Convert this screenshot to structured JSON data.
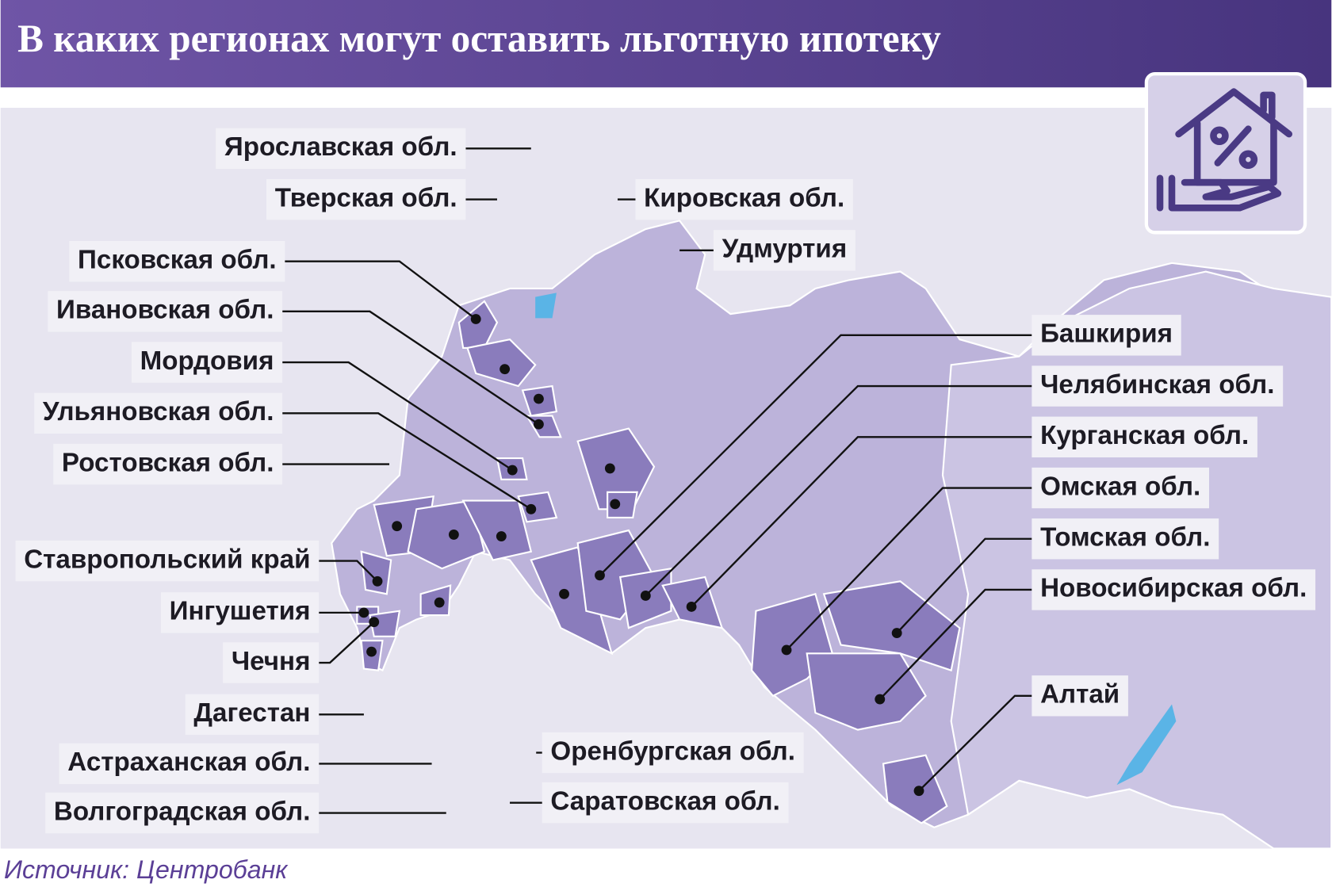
{
  "title": "В каких регионах могут оставить льготную ипотеку",
  "regions": [
    "Ярославская обл.",
    "Тверская обл.",
    "Псковская обл.",
    "Ивановская обл.",
    "Мордовия",
    "Ульяновская обл.",
    "Ростовская обл.",
    "Ставропольский край",
    "Ингушетия",
    "Чечня",
    "Дагестан",
    "Астраханская обл.",
    "Волгоградская обл.",
    "Оренбургская обл.",
    "Саратовская обл.",
    "Кировская обл.",
    "Удмуртия",
    "Башкирия",
    "Челябинская обл.",
    "Курганская обл.",
    "Омская обл.",
    "Томская обл.",
    "Новосибирская обл.",
    "Алтай"
  ],
  "source": "Источник: Центробанк"
}
